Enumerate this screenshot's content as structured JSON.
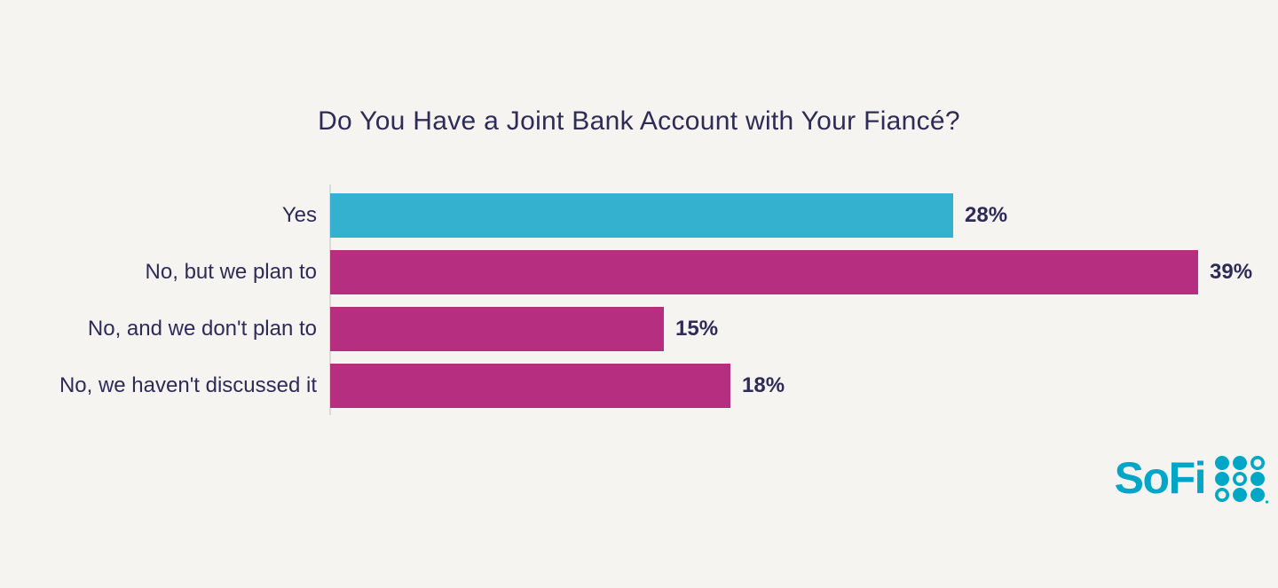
{
  "title": "Do You Have a Joint Bank Account with Your Fiancé?",
  "colors": {
    "background": "#F6F4F0",
    "text": "#2E2C57",
    "teal_bar": "#33B1CE",
    "magenta_bar": "#B52E80",
    "baseline": "#DCDAD5",
    "logo_teal": "#00A6C6"
  },
  "chart_data": {
    "type": "bar",
    "orientation": "horizontal",
    "title": "Do You Have a Joint Bank Account with Your Fiancé?",
    "categories": [
      "Yes",
      "No, but we plan to",
      "No, and we don't plan to",
      "No, we haven't discussed it"
    ],
    "values": [
      28,
      39,
      15,
      18
    ],
    "value_labels": [
      "28%",
      "39%",
      "15%",
      "18%"
    ],
    "bar_colors": [
      "#33B1CE",
      "#B52E80",
      "#B52E80",
      "#B52E80"
    ],
    "xlabel": "",
    "ylabel": "",
    "xlim": [
      0,
      42
    ],
    "grid": false,
    "legend": false,
    "value_label_position": "end-of-bar"
  },
  "logo": {
    "text": "SoFi",
    "icon": "sofi-dot-grid-icon"
  }
}
